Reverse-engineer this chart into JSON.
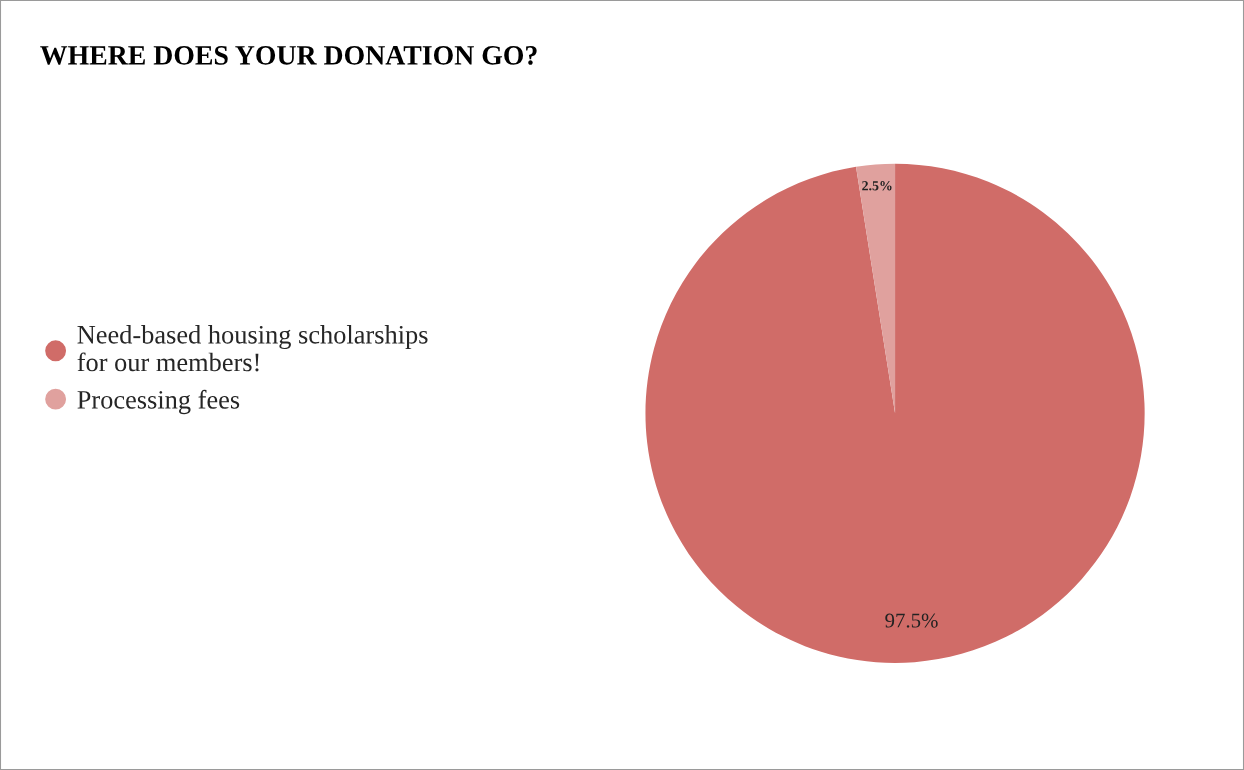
{
  "chart_data": {
    "type": "pie",
    "title": "WHERE DOES YOUR DONATION GO?",
    "categories": [
      "Need-based housing scholarships for our members!",
      "Processing fees"
    ],
    "values": [
      97.5,
      2.5
    ],
    "colors": [
      "#d06c68",
      "#e0a19e"
    ],
    "value_labels": [
      "97.5%",
      "2.5%"
    ],
    "legend": "left"
  }
}
